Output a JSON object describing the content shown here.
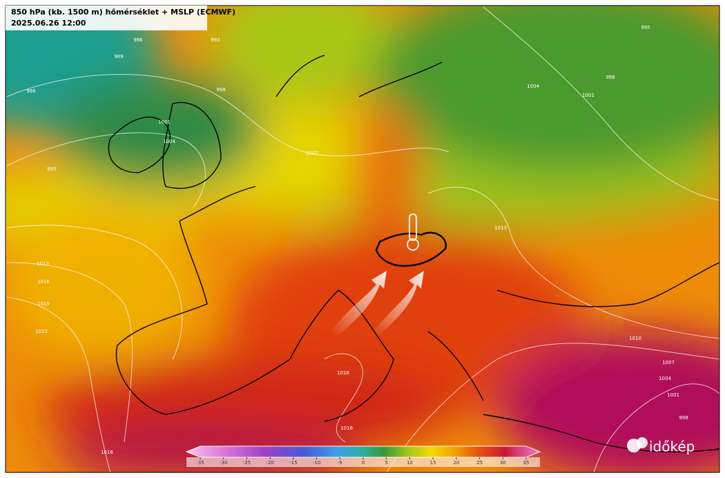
{
  "header": {
    "title": "850 hPa (kb. 1500 m) hőmérséklet + MSLP (ECMWF)",
    "timestamp": "2025.06.26 12:00"
  },
  "colorbar": {
    "ticks": [
      -35,
      -30,
      -25,
      -20,
      -15,
      -10,
      -5,
      0,
      5,
      10,
      15,
      20,
      25,
      30,
      35
    ]
  },
  "isobar_labels": [
    "986",
    "989",
    "992",
    "998",
    "1001",
    "1004",
    "1007",
    "995",
    "986",
    "995",
    "998",
    "1004",
    "1001",
    "1013",
    "1013",
    "1016",
    "1019",
    "1022",
    "1010",
    "1007",
    "1004",
    "1001",
    "998",
    "1016",
    "1016",
    "1016"
  ],
  "logo": "időkép"
}
